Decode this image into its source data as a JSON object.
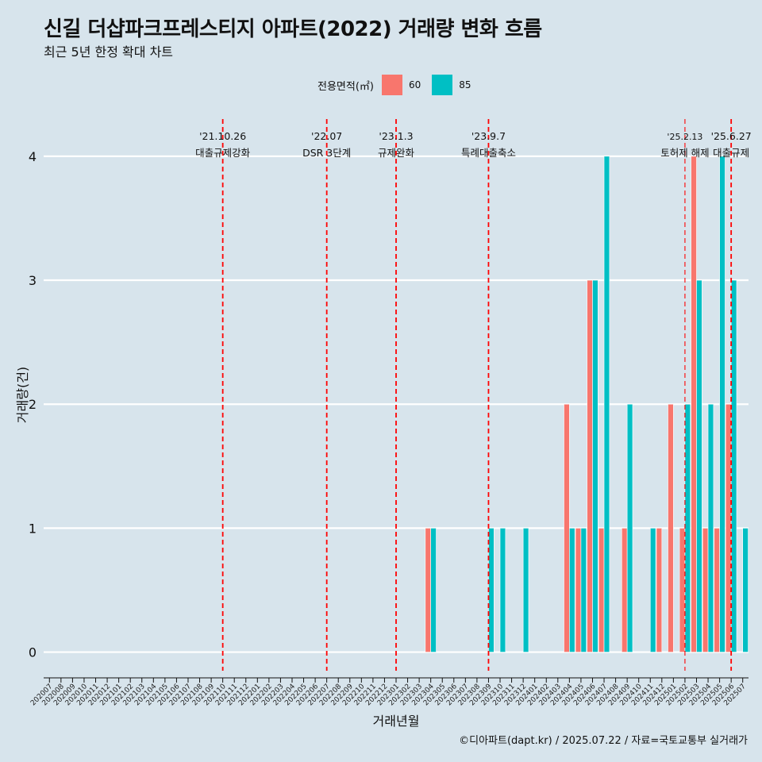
{
  "title": "신길 더샵파크프레스티지 아파트(2022) 거래량 변화 흐름",
  "subtitle": "최근 5년 한정 확대 차트",
  "caption": "©디아파트(dapt.kr) / 2025.07.22 / 자료=국토교통부 실거래가",
  "legend": {
    "title": "전용면적(㎡)",
    "items": [
      {
        "label": "60",
        "color": "#f8766d"
      },
      {
        "label": "85",
        "color": "#00bfc4"
      }
    ]
  },
  "chart_data": {
    "type": "bar",
    "xlabel": "거래년월",
    "ylabel": "거래량(건)",
    "ylim": [
      -0.15,
      4.3
    ],
    "yticks": [
      0,
      1,
      2,
      3,
      4
    ],
    "categories": [
      "202007",
      "202008",
      "202009",
      "202010",
      "202011",
      "202012",
      "202101",
      "202102",
      "202103",
      "202104",
      "202105",
      "202106",
      "202107",
      "202108",
      "202109",
      "202110",
      "202111",
      "202112",
      "202201",
      "202202",
      "202203",
      "202204",
      "202205",
      "202206",
      "202207",
      "202208",
      "202209",
      "202210",
      "202211",
      "202212",
      "202301",
      "202302",
      "202303",
      "202304",
      "202305",
      "202306",
      "202307",
      "202308",
      "202309",
      "202310",
      "202311",
      "202312",
      "202401",
      "202402",
      "202403",
      "202404",
      "202405",
      "202406",
      "202407",
      "202408",
      "202409",
      "202410",
      "202411",
      "202412",
      "202501",
      "202502",
      "202503",
      "202504",
      "202505",
      "202506",
      "202507"
    ],
    "series": [
      {
        "name": "60",
        "color": "#f8766d",
        "values": {
          "202304": 1,
          "202404": 2,
          "202405": 1,
          "202406": 3,
          "202407": 1,
          "202409": 1,
          "202412": 1,
          "202501": 2,
          "202502": 1,
          "202503": 4,
          "202504": 1,
          "202505": 1,
          "202506": 2
        }
      },
      {
        "name": "85",
        "color": "#00bfc4",
        "values": {
          "202304": 1,
          "202309": 1,
          "202310": 1,
          "202312": 1,
          "202404": 1,
          "202405": 1,
          "202406": 3,
          "202407": 4,
          "202409": 2,
          "202411": 1,
          "202502": 2,
          "202503": 3,
          "202504": 2,
          "202505": 4,
          "202506": 3,
          "202507": 1
        }
      }
    ],
    "events": [
      {
        "date_line1": "'21.10.26",
        "date_line2": "대출규제강화",
        "x": "202110",
        "style": "thick"
      },
      {
        "date_line1": "'22.07",
        "date_line2": "DSR 3단계",
        "x": "202207",
        "style": "thick"
      },
      {
        "date_line1": "'23.1.3",
        "date_line2": "규제완화",
        "x": "202301",
        "style": "thick"
      },
      {
        "date_line1": "'23.9.7",
        "date_line2": "특례대출축소",
        "x": "202309",
        "style": "thick"
      },
      {
        "date_line1": "'25.2.13",
        "date_line2": "토허제 해제",
        "x": "202502",
        "style": "thin"
      },
      {
        "date_line1": "'25.6.27",
        "date_line2": "대출규제",
        "x": "202506",
        "style": "thick"
      }
    ],
    "grid": "horizontal",
    "legend_position": "top"
  }
}
